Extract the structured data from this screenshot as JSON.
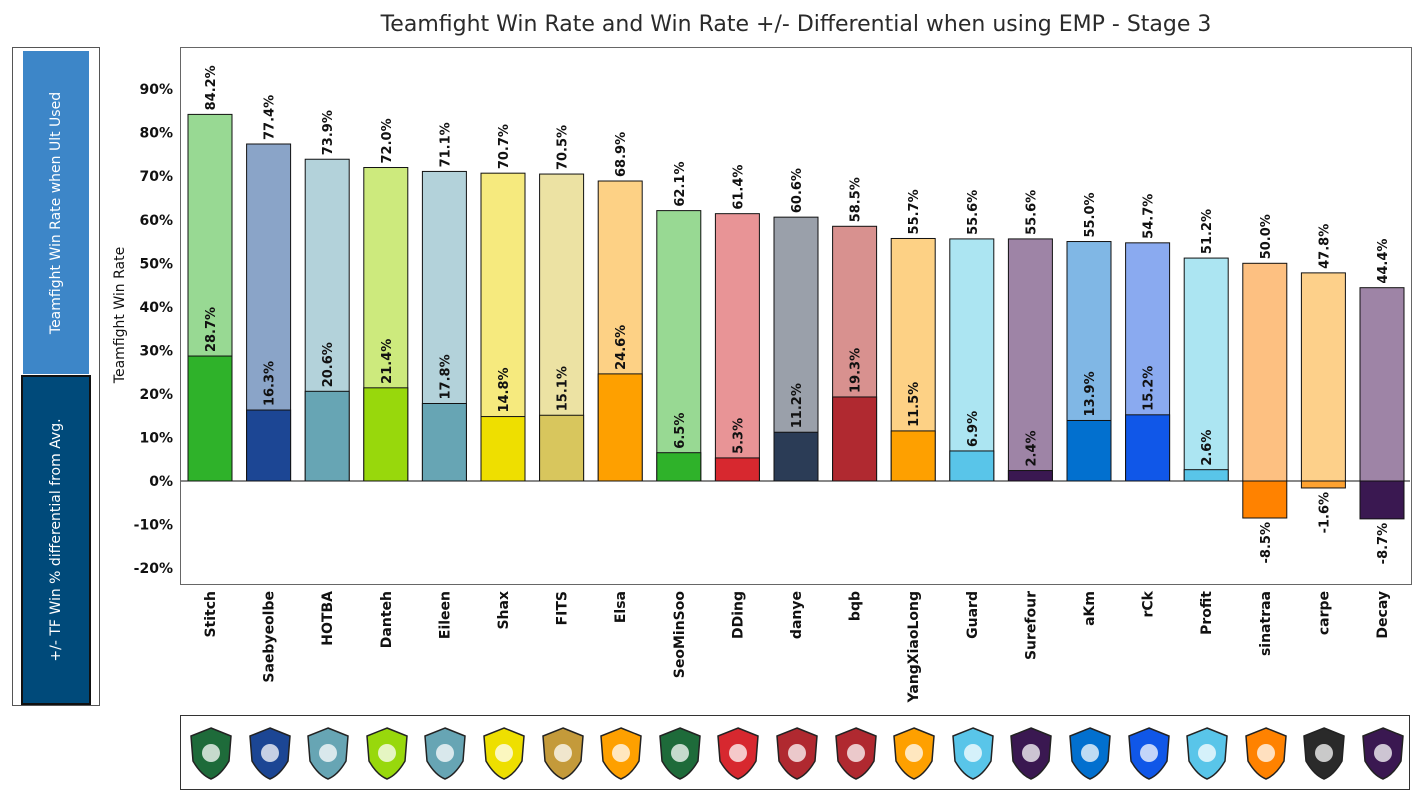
{
  "chart_data": {
    "type": "bar",
    "title": "Teamfight Win Rate and Win Rate +/- Differential when using EMP - Stage 3",
    "ylabel": "Teamfight Win Rate",
    "ylim": [
      -25,
      97
    ],
    "yticks": [
      -20,
      -10,
      0,
      10,
      20,
      30,
      40,
      50,
      60,
      70,
      80,
      90
    ],
    "ytick_labels": [
      "-20%",
      "-10%",
      "0%",
      "10%",
      "20%",
      "30%",
      "40%",
      "50%",
      "60%",
      "70%",
      "80%",
      "90%"
    ],
    "grid": false,
    "legend_position": "left",
    "categories": [
      "Stitch",
      "Saebyeolbe",
      "HOTBA",
      "Danteh",
      "Eileen",
      "Shax",
      "FITS",
      "Elsa",
      "SeoMinSoo",
      "DDing",
      "danye",
      "bqb",
      "YangXiaoLong",
      "Guard",
      "Surefour",
      "aKm",
      "rCk",
      "Profit",
      "sinatraa",
      "carpe",
      "Decay"
    ],
    "series": [
      {
        "name": "Teamfight Win Rate when Ult Used",
        "values": [
          84.2,
          77.4,
          73.9,
          72.0,
          71.1,
          70.7,
          70.5,
          68.9,
          62.1,
          61.4,
          60.6,
          58.5,
          55.7,
          55.6,
          55.6,
          55.0,
          54.7,
          51.2,
          50.0,
          47.8,
          44.4
        ],
        "labels": [
          "84.2%",
          "77.4%",
          "73.9%",
          "72.0%",
          "71.1%",
          "70.7%",
          "70.5%",
          "68.9%",
          "62.1%",
          "61.4%",
          "60.6%",
          "58.5%",
          "55.7%",
          "55.6%",
          "55.6%",
          "55.0%",
          "54.7%",
          "51.2%",
          "50.0%",
          "47.8%",
          "44.4%"
        ],
        "colors": [
          "#98d993",
          "#8aa4c8",
          "#b3d2da",
          "#cdea7d",
          "#b3d2da",
          "#f6ea7e",
          "#ece2a3",
          "#fdd185",
          "#98d993",
          "#e89496",
          "#9aa0aa",
          "#d8918f",
          "#fdd185",
          "#ace5f2",
          "#9e84a6",
          "#80b7e5",
          "#8aaaf0",
          "#ace5f2",
          "#fdc081",
          "#fdd08a",
          "#9e84a6"
        ]
      },
      {
        "name": "+/- TF Win % differential from Avg.",
        "values": [
          28.7,
          16.3,
          20.6,
          21.4,
          17.8,
          14.8,
          15.1,
          24.6,
          6.5,
          5.3,
          11.2,
          19.3,
          11.5,
          6.9,
          2.4,
          13.9,
          15.2,
          2.6,
          -8.5,
          -1.6,
          -8.7
        ],
        "labels": [
          "28.7%",
          "16.3%",
          "20.6%",
          "21.4%",
          "17.8%",
          "14.8%",
          "15.1%",
          "24.6%",
          "6.5%",
          "5.3%",
          "11.2%",
          "19.3%",
          "11.5%",
          "6.9%",
          "2.4%",
          "13.9%",
          "15.2%",
          "2.6%",
          "-8.5%",
          "-1.6%",
          "-8.7%"
        ],
        "colors": [
          "#2fb22a",
          "#1c4694",
          "#67a5b4",
          "#98d80c",
          "#67a5b4",
          "#eedf00",
          "#d8c65d",
          "#fea000",
          "#2fb22a",
          "#d7282f",
          "#2b3c56",
          "#b02930",
          "#fea000",
          "#59c5e9",
          "#3a1851",
          "#0270cf",
          "#1057e8",
          "#59c5e9",
          "#ff8200",
          "#fea231",
          "#3a1851"
        ]
      }
    ]
  },
  "legend": {
    "top_label": "Teamfight Win Rate when Ult Used",
    "bottom_label": "+/- TF Win % differential from Avg."
  },
  "logos": [
    {
      "icon": "vancouver-titans-logo-icon",
      "color": "#1e6b3a"
    },
    {
      "icon": "nyxl-logo-icon",
      "color": "#1c4694"
    },
    {
      "icon": "guangzhou-charge-logo-icon",
      "color": "#67a5b4"
    },
    {
      "icon": "outlaws-logo-icon",
      "color": "#98d80c"
    },
    {
      "icon": "guangzhou-charge-logo-icon",
      "color": "#67a5b4"
    },
    {
      "icon": "mayhem-logo-icon",
      "color": "#eedf00"
    },
    {
      "icon": "dynasty-logo-icon",
      "color": "#c49a3a"
    },
    {
      "icon": "hunters-logo-icon",
      "color": "#fea000"
    },
    {
      "icon": "vancouver-titans-logo-icon",
      "color": "#1e6b3a"
    },
    {
      "icon": "dragons-logo-icon",
      "color": "#d7282f"
    },
    {
      "icon": "paris-eternal-logo-icon",
      "color": "#b02930"
    },
    {
      "icon": "valiant-logo-icon",
      "color": "#b02930"
    },
    {
      "icon": "hunters-logo-icon",
      "color": "#fea000"
    },
    {
      "icon": "spitfire-logo-icon",
      "color": "#59c5e9"
    },
    {
      "icon": "gladiators-logo-icon",
      "color": "#3a1851"
    },
    {
      "icon": "dallas-fuel-logo-icon",
      "color": "#0270cf"
    },
    {
      "icon": "boston-uprising-logo-icon",
      "color": "#1057e8"
    },
    {
      "icon": "spitfire-logo-icon",
      "color": "#59c5e9"
    },
    {
      "icon": "shock-logo-icon",
      "color": "#ff8200"
    },
    {
      "icon": "fusion-logo-icon",
      "color": "#2a2a2a"
    },
    {
      "icon": "gladiators-logo-icon",
      "color": "#3a1851"
    }
  ]
}
